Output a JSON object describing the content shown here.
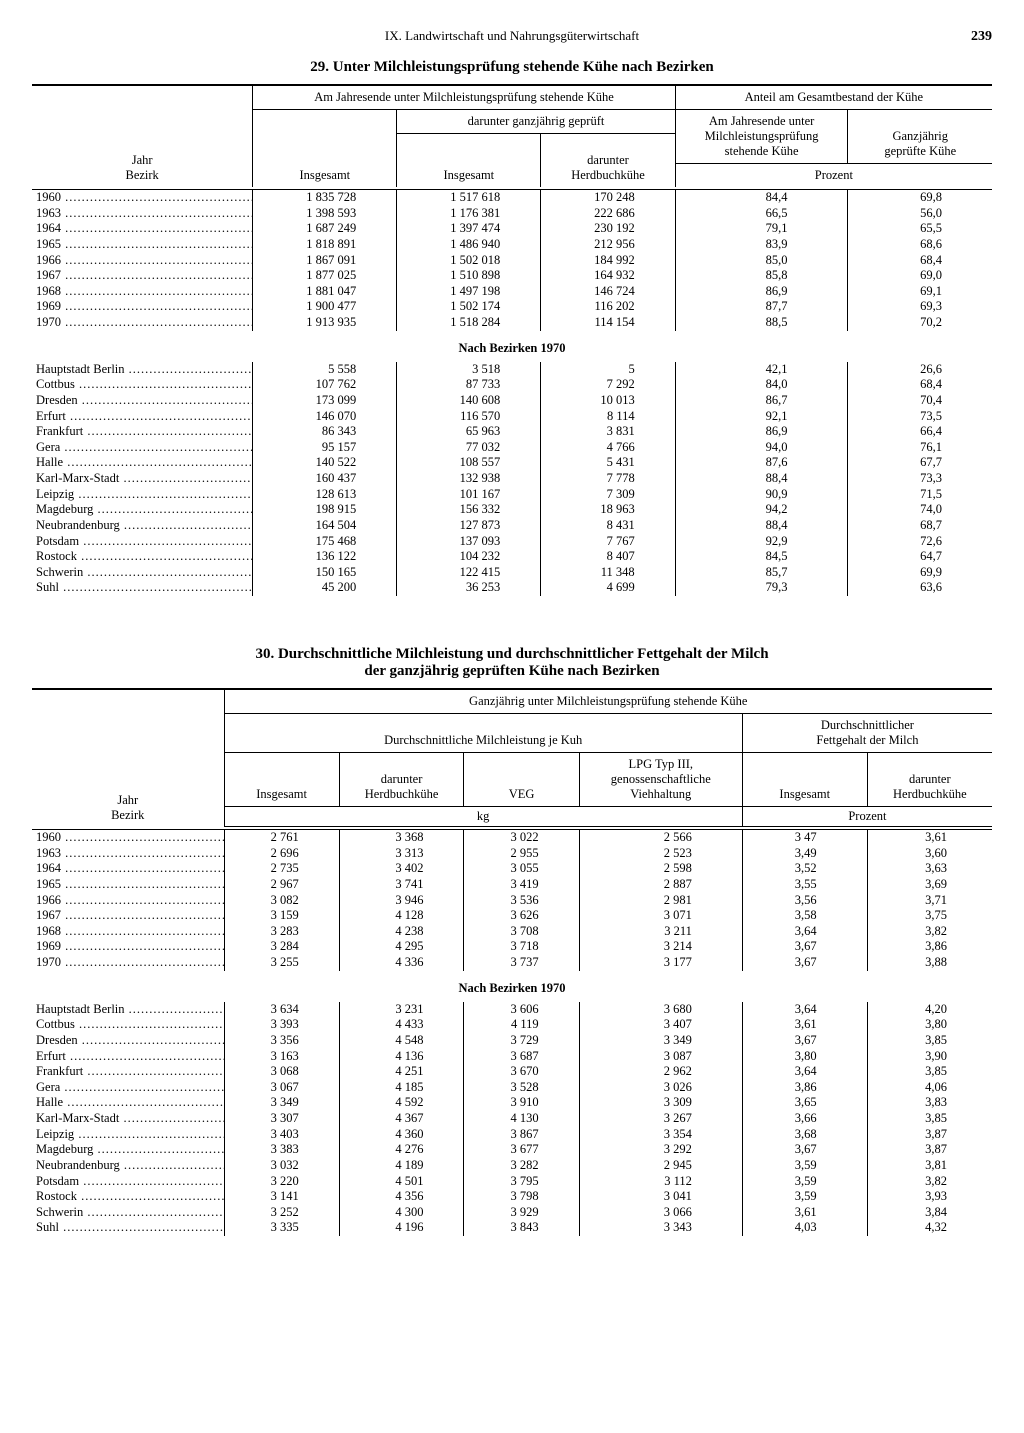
{
  "page": {
    "chapter": "IX. Landwirtschaft und Nahrungsgüterwirtschaft",
    "number": "239"
  },
  "table29": {
    "title": "29. Unter Milchleistungsprüfung stehende Kühe nach Bezirken",
    "head": {
      "col_label": "Jahr\nBezirk",
      "grpA": "Am Jahresende unter Milchleistungsprüfung stehende Kühe",
      "grpB": "Anteil am Gesamtbestand der Kühe",
      "a1": "Insgesamt",
      "a2_top": "darunter ganzjährig geprüft",
      "a2": "Insgesamt",
      "a3": "darunter\nHerdbuchkühe",
      "b1": "Am Jahresende unter\nMilchleistungsprüfung\nstehende Kühe",
      "b2": "Ganzjährig\ngeprüfte Kühe",
      "unitB": "Prozent"
    },
    "years": [
      {
        "y": "1960",
        "c1": "1 835 728",
        "c2": "1 517 618",
        "c3": "170 248",
        "c4": "84,4",
        "c5": "69,8"
      },
      {
        "y": "1963",
        "c1": "1 398 593",
        "c2": "1 176 381",
        "c3": "222 686",
        "c4": "66,5",
        "c5": "56,0"
      },
      {
        "y": "1964",
        "c1": "1 687 249",
        "c2": "1 397 474",
        "c3": "230 192",
        "c4": "79,1",
        "c5": "65,5"
      },
      {
        "y": "1965",
        "c1": "1 818 891",
        "c2": "1 486 940",
        "c3": "212 956",
        "c4": "83,9",
        "c5": "68,6"
      },
      {
        "y": "1966",
        "c1": "1 867 091",
        "c2": "1 502 018",
        "c3": "184 992",
        "c4": "85,0",
        "c5": "68,4"
      },
      {
        "y": "1967",
        "c1": "1 877 025",
        "c2": "1 510 898",
        "c3": "164 932",
        "c4": "85,8",
        "c5": "69,0"
      },
      {
        "y": "1968",
        "c1": "1 881 047",
        "c2": "1 497 198",
        "c3": "146 724",
        "c4": "86,9",
        "c5": "69,1"
      },
      {
        "y": "1969",
        "c1": "1 900 477",
        "c2": "1 502 174",
        "c3": "116 202",
        "c4": "87,7",
        "c5": "69,3"
      },
      {
        "y": "1970",
        "c1": "1 913 935",
        "c2": "1 518 284",
        "c3": "114 154",
        "c4": "88,5",
        "c5": "70,2"
      }
    ],
    "section": "Nach Bezirken 1970",
    "bezirke": [
      {
        "y": "Hauptstadt Berlin",
        "c1": "5 558",
        "c2": "3 518",
        "c3": "5",
        "c4": "42,1",
        "c5": "26,6"
      },
      {
        "y": "Cottbus",
        "c1": "107 762",
        "c2": "87 733",
        "c3": "7 292",
        "c4": "84,0",
        "c5": "68,4"
      },
      {
        "y": "Dresden",
        "c1": "173 099",
        "c2": "140 608",
        "c3": "10 013",
        "c4": "86,7",
        "c5": "70,4"
      },
      {
        "y": "Erfurt",
        "c1": "146 070",
        "c2": "116 570",
        "c3": "8 114",
        "c4": "92,1",
        "c5": "73,5"
      },
      {
        "y": "Frankfurt",
        "c1": "86 343",
        "c2": "65 963",
        "c3": "3 831",
        "c4": "86,9",
        "c5": "66,4"
      },
      {
        "y": "Gera",
        "c1": "95 157",
        "c2": "77 032",
        "c3": "4 766",
        "c4": "94,0",
        "c5": "76,1"
      },
      {
        "y": "Halle",
        "c1": "140 522",
        "c2": "108 557",
        "c3": "5 431",
        "c4": "87,6",
        "c5": "67,7"
      },
      {
        "y": "Karl-Marx-Stadt",
        "c1": "160 437",
        "c2": "132 938",
        "c3": "7 778",
        "c4": "88,4",
        "c5": "73,3"
      },
      {
        "y": "Leipzig",
        "c1": "128 613",
        "c2": "101 167",
        "c3": "7 309",
        "c4": "90,9",
        "c5": "71,5"
      },
      {
        "y": "Magdeburg",
        "c1": "198 915",
        "c2": "156 332",
        "c3": "18 963",
        "c4": "94,2",
        "c5": "74,0"
      },
      {
        "y": "Neubrandenburg",
        "c1": "164 504",
        "c2": "127 873",
        "c3": "8 431",
        "c4": "88,4",
        "c5": "68,7"
      },
      {
        "y": "Potsdam",
        "c1": "175 468",
        "c2": "137 093",
        "c3": "7 767",
        "c4": "92,9",
        "c5": "72,6"
      },
      {
        "y": "Rostock",
        "c1": "136 122",
        "c2": "104 232",
        "c3": "8 407",
        "c4": "84,5",
        "c5": "64,7"
      },
      {
        "y": "Schwerin",
        "c1": "150 165",
        "c2": "122 415",
        "c3": "11 348",
        "c4": "85,7",
        "c5": "69,9"
      },
      {
        "y": "Suhl",
        "c1": "45 200",
        "c2": "36 253",
        "c3": "4 699",
        "c4": "79,3",
        "c5": "63,6"
      }
    ]
  },
  "table30": {
    "title": "30. Durchschnittliche Milchleistung und durchschnittlicher Fettgehalt der Milch\nder ganzjährig geprüften Kühe nach Bezirken",
    "head": {
      "col_label": "Jahr\nBezirk",
      "top": "Ganzjährig unter Milchleistungsprüfung stehende Kühe",
      "grpA": "Durchschnittliche Milchleistung je Kuh",
      "grpB": "Durchschnittlicher\nFettgehalt der Milch",
      "a1": "Insgesamt",
      "a2": "darunter\nHerdbuchkühe",
      "a3": "VEG",
      "a4": "LPG Typ III,\ngenossenschaftliche\nViehhaltung",
      "b1": "Insgesamt",
      "b2": "darunter\nHerdbuchkühe",
      "unitA": "kg",
      "unitB": "Prozent"
    },
    "years": [
      {
        "y": "1960",
        "c1": "2 761",
        "c2": "3 368",
        "c3": "3 022",
        "c4": "2 566",
        "c5": "3 47",
        "c6": "3,61"
      },
      {
        "y": "1963",
        "c1": "2 696",
        "c2": "3 313",
        "c3": "2 955",
        "c4": "2 523",
        "c5": "3,49",
        "c6": "3,60"
      },
      {
        "y": "1964",
        "c1": "2 735",
        "c2": "3 402",
        "c3": "3 055",
        "c4": "2 598",
        "c5": "3,52",
        "c6": "3,63"
      },
      {
        "y": "1965",
        "c1": "2 967",
        "c2": "3 741",
        "c3": "3 419",
        "c4": "2 887",
        "c5": "3,55",
        "c6": "3,69"
      },
      {
        "y": "1966",
        "c1": "3 082",
        "c2": "3 946",
        "c3": "3 536",
        "c4": "2 981",
        "c5": "3,56",
        "c6": "3,71"
      },
      {
        "y": "1967",
        "c1": "3 159",
        "c2": "4 128",
        "c3": "3 626",
        "c4": "3 071",
        "c5": "3,58",
        "c6": "3,75"
      },
      {
        "y": "1968",
        "c1": "3 283",
        "c2": "4 238",
        "c3": "3 708",
        "c4": "3 211",
        "c5": "3,64",
        "c6": "3,82"
      },
      {
        "y": "1969",
        "c1": "3 284",
        "c2": "4 295",
        "c3": "3 718",
        "c4": "3 214",
        "c5": "3,67",
        "c6": "3,86"
      },
      {
        "y": "1970",
        "c1": "3 255",
        "c2": "4 336",
        "c3": "3 737",
        "c4": "3 177",
        "c5": "3,67",
        "c6": "3,88"
      }
    ],
    "section": "Nach Bezirken 1970",
    "bezirke": [
      {
        "y": "Hauptstadt Berlin",
        "c1": "3 634",
        "c2": "3 231",
        "c3": "3 606",
        "c4": "3 680",
        "c5": "3,64",
        "c6": "4,20"
      },
      {
        "y": "Cottbus",
        "c1": "3 393",
        "c2": "4 433",
        "c3": "4 119",
        "c4": "3 407",
        "c5": "3,61",
        "c6": "3,80"
      },
      {
        "y": "Dresden",
        "c1": "3 356",
        "c2": "4 548",
        "c3": "3 729",
        "c4": "3 349",
        "c5": "3,67",
        "c6": "3,85"
      },
      {
        "y": "Erfurt",
        "c1": "3 163",
        "c2": "4 136",
        "c3": "3 687",
        "c4": "3 087",
        "c5": "3,80",
        "c6": "3,90"
      },
      {
        "y": "Frankfurt",
        "c1": "3 068",
        "c2": "4 251",
        "c3": "3 670",
        "c4": "2 962",
        "c5": "3,64",
        "c6": "3,85"
      },
      {
        "y": "Gera",
        "c1": "3 067",
        "c2": "4 185",
        "c3": "3 528",
        "c4": "3 026",
        "c5": "3,86",
        "c6": "4,06"
      },
      {
        "y": "Halle",
        "c1": "3 349",
        "c2": "4 592",
        "c3": "3 910",
        "c4": "3 309",
        "c5": "3,65",
        "c6": "3,83"
      },
      {
        "y": "Karl-Marx-Stadt",
        "c1": "3 307",
        "c2": "4 367",
        "c3": "4 130",
        "c4": "3 267",
        "c5": "3,66",
        "c6": "3,85"
      },
      {
        "y": "Leipzig",
        "c1": "3 403",
        "c2": "4 360",
        "c3": "3 867",
        "c4": "3 354",
        "c5": "3,68",
        "c6": "3,87"
      },
      {
        "y": "Magdeburg",
        "c1": "3 383",
        "c2": "4 276",
        "c3": "3 677",
        "c4": "3 292",
        "c5": "3,67",
        "c6": "3,87"
      },
      {
        "y": "Neubrandenburg",
        "c1": "3 032",
        "c2": "4 189",
        "c3": "3 282",
        "c4": "2 945",
        "c5": "3,59",
        "c6": "3,81"
      },
      {
        "y": "Potsdam",
        "c1": "3 220",
        "c2": "4 501",
        "c3": "3 795",
        "c4": "3 112",
        "c5": "3,59",
        "c6": "3,82"
      },
      {
        "y": "Rostock",
        "c1": "3 141",
        "c2": "4 356",
        "c3": "3 798",
        "c4": "3 041",
        "c5": "3,59",
        "c6": "3,93"
      },
      {
        "y": "Schwerin",
        "c1": "3 252",
        "c2": "4 300",
        "c3": "3 929",
        "c4": "3 066",
        "c5": "3,61",
        "c6": "3,84"
      },
      {
        "y": "Suhl",
        "c1": "3 335",
        "c2": "4 196",
        "c3": "3 843",
        "c4": "3 343",
        "c5": "4,03",
        "c6": "4,32"
      }
    ]
  }
}
